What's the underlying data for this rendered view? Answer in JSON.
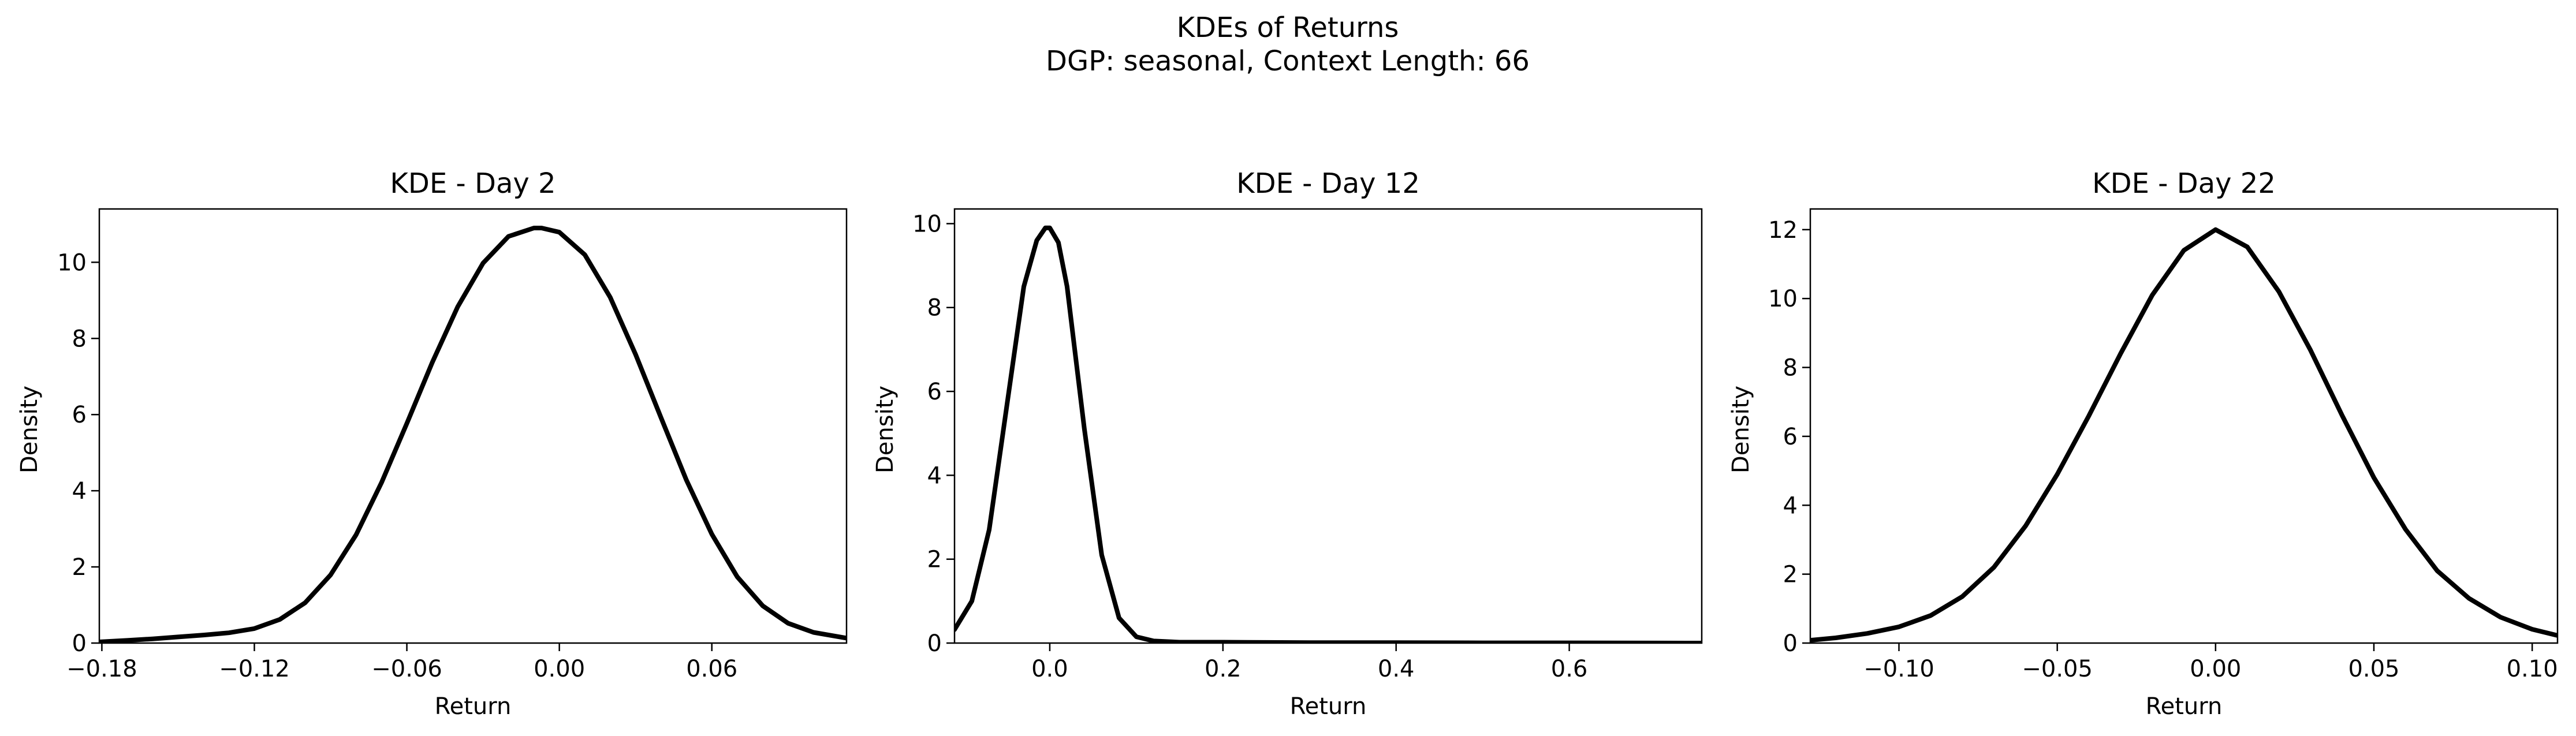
{
  "figure": {
    "title_line1": "KDEs of Returns",
    "title_line2": "DGP: seasonal, Context Length: 66"
  },
  "chart_data": [
    {
      "type": "line",
      "title": "KDE - Day 2",
      "xlabel": "Return",
      "ylabel": "Density",
      "xlim": [
        -0.181,
        0.113
      ],
      "ylim": [
        0,
        11.4
      ],
      "xticks": [
        -0.18,
        -0.12,
        -0.06,
        0.0,
        0.06
      ],
      "xtick_labels": [
        "−0.18",
        "−0.12",
        "−0.06",
        "0.00",
        "0.06"
      ],
      "yticks": [
        0,
        2,
        4,
        6,
        8,
        10
      ],
      "ytick_labels": [
        "0",
        "2",
        "4",
        "6",
        "8",
        "10"
      ],
      "series": [
        {
          "color": "#000000",
          "x": [
            -0.181,
            -0.17,
            -0.16,
            -0.15,
            -0.14,
            -0.13,
            -0.12,
            -0.11,
            -0.1,
            -0.09,
            -0.08,
            -0.07,
            -0.06,
            -0.05,
            -0.04,
            -0.03,
            -0.02,
            -0.01,
            -0.007,
            0.0,
            0.01,
            0.02,
            0.03,
            0.04,
            0.05,
            0.06,
            0.07,
            0.08,
            0.09,
            0.1,
            0.113
          ],
          "y": [
            0.03,
            0.07,
            0.11,
            0.16,
            0.21,
            0.27,
            0.38,
            0.62,
            1.06,
            1.79,
            2.84,
            4.21,
            5.77,
            7.37,
            8.83,
            9.98,
            10.68,
            10.9,
            10.9,
            10.79,
            10.2,
            9.08,
            7.58,
            5.92,
            4.28,
            2.86,
            1.74,
            0.98,
            0.52,
            0.28,
            0.13
          ]
        }
      ]
    },
    {
      "type": "line",
      "title": "KDE - Day 12",
      "xlabel": "Return",
      "ylabel": "Density",
      "xlim": [
        -0.11,
        0.753
      ],
      "ylim": [
        0,
        10.35
      ],
      "xticks": [
        0.0,
        0.2,
        0.4,
        0.6
      ],
      "xtick_labels": [
        "0.0",
        "0.2",
        "0.4",
        "0.6"
      ],
      "yticks": [
        0,
        2,
        4,
        6,
        8,
        10
      ],
      "ytick_labels": [
        "0",
        "2",
        "4",
        "6",
        "8",
        "10"
      ],
      "series": [
        {
          "color": "#000000",
          "x": [
            -0.11,
            -0.09,
            -0.07,
            -0.05,
            -0.03,
            -0.015,
            -0.005,
            0.0,
            0.01,
            0.02,
            0.04,
            0.06,
            0.08,
            0.1,
            0.12,
            0.15,
            0.2,
            0.25,
            0.3,
            0.4,
            0.5,
            0.6,
            0.7,
            0.753
          ],
          "y": [
            0.32,
            1.0,
            2.7,
            5.6,
            8.5,
            9.6,
            9.9,
            9.9,
            9.55,
            8.5,
            5.1,
            2.1,
            0.6,
            0.15,
            0.05,
            0.02,
            0.02,
            0.015,
            0.01,
            0.01,
            0.005,
            0.005,
            0.002,
            0.0
          ]
        }
      ]
    },
    {
      "type": "line",
      "title": "KDE - Day 22",
      "xlabel": "Return",
      "ylabel": "Density",
      "xlim": [
        -0.128,
        0.108
      ],
      "ylim": [
        0,
        12.6
      ],
      "xticks": [
        -0.1,
        -0.05,
        0.0,
        0.05,
        0.1
      ],
      "xtick_labels": [
        "−0.10",
        "−0.05",
        "0.00",
        "0.05",
        "0.10"
      ],
      "yticks": [
        0,
        2,
        4,
        6,
        8,
        10,
        12
      ],
      "ytick_labels": [
        "0",
        "2",
        "4",
        "6",
        "8",
        "10",
        "12"
      ],
      "series": [
        {
          "color": "#000000",
          "x": [
            -0.128,
            -0.12,
            -0.11,
            -0.1,
            -0.09,
            -0.08,
            -0.07,
            -0.06,
            -0.05,
            -0.04,
            -0.03,
            -0.02,
            -0.01,
            0.0,
            0.01,
            0.02,
            0.03,
            0.04,
            0.05,
            0.06,
            0.07,
            0.08,
            0.09,
            0.1,
            0.108
          ],
          "y": [
            0.08,
            0.15,
            0.28,
            0.47,
            0.8,
            1.35,
            2.2,
            3.4,
            4.9,
            6.6,
            8.4,
            10.1,
            11.4,
            12.0,
            11.5,
            10.2,
            8.5,
            6.6,
            4.8,
            3.3,
            2.1,
            1.3,
            0.75,
            0.4,
            0.22
          ]
        }
      ]
    }
  ]
}
